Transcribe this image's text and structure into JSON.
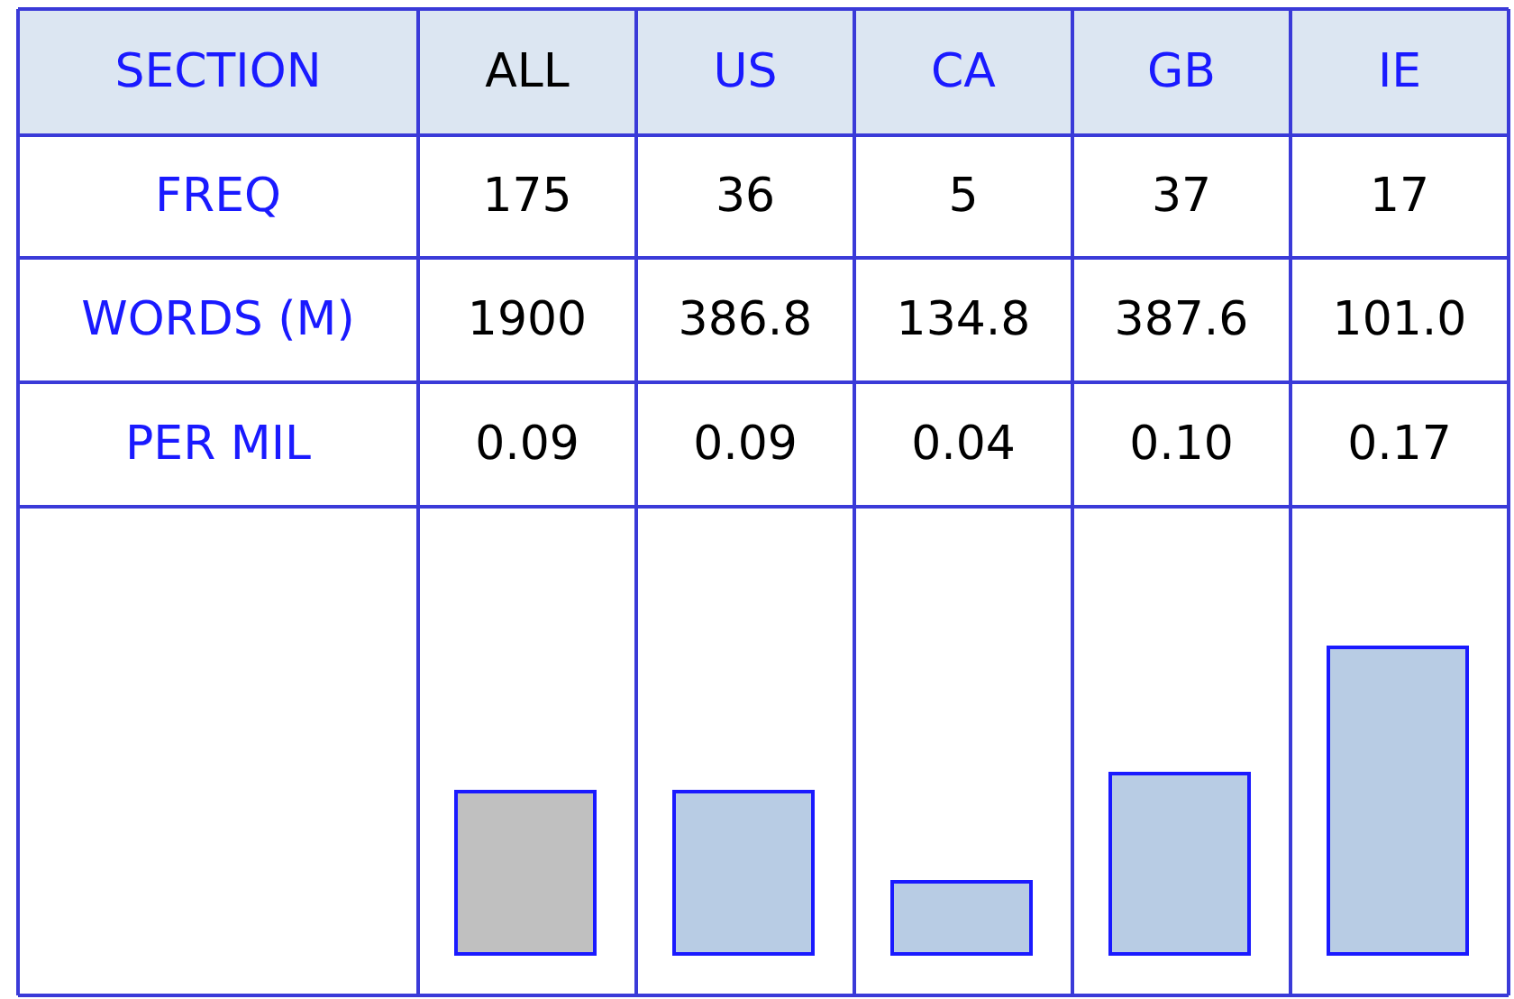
{
  "chart_data": {
    "type": "bar",
    "xlabel": "SECTION",
    "categories": [
      "ALL",
      "US",
      "CA",
      "GB",
      "IE"
    ],
    "colors": [
      "#c0c0c0",
      "#b8cce4",
      "#b8cce4",
      "#b8cce4",
      "#b8cce4"
    ],
    "annotations": [
      "FREQ",
      "175",
      "36",
      "5",
      "37",
      "17",
      "WORDS (M)",
      "1900",
      "386.8",
      "134.8",
      "387.6",
      "101.0"
    ],
    "series": [
      {
        "name": "PER MIL",
        "values": [
          0.09,
          0.09,
          0.04,
          0.1,
          0.17
        ],
        "value_labels": [
          "0.09",
          "0.09",
          "0.04",
          "0.10",
          "0.17"
        ]
      }
    ]
  }
}
